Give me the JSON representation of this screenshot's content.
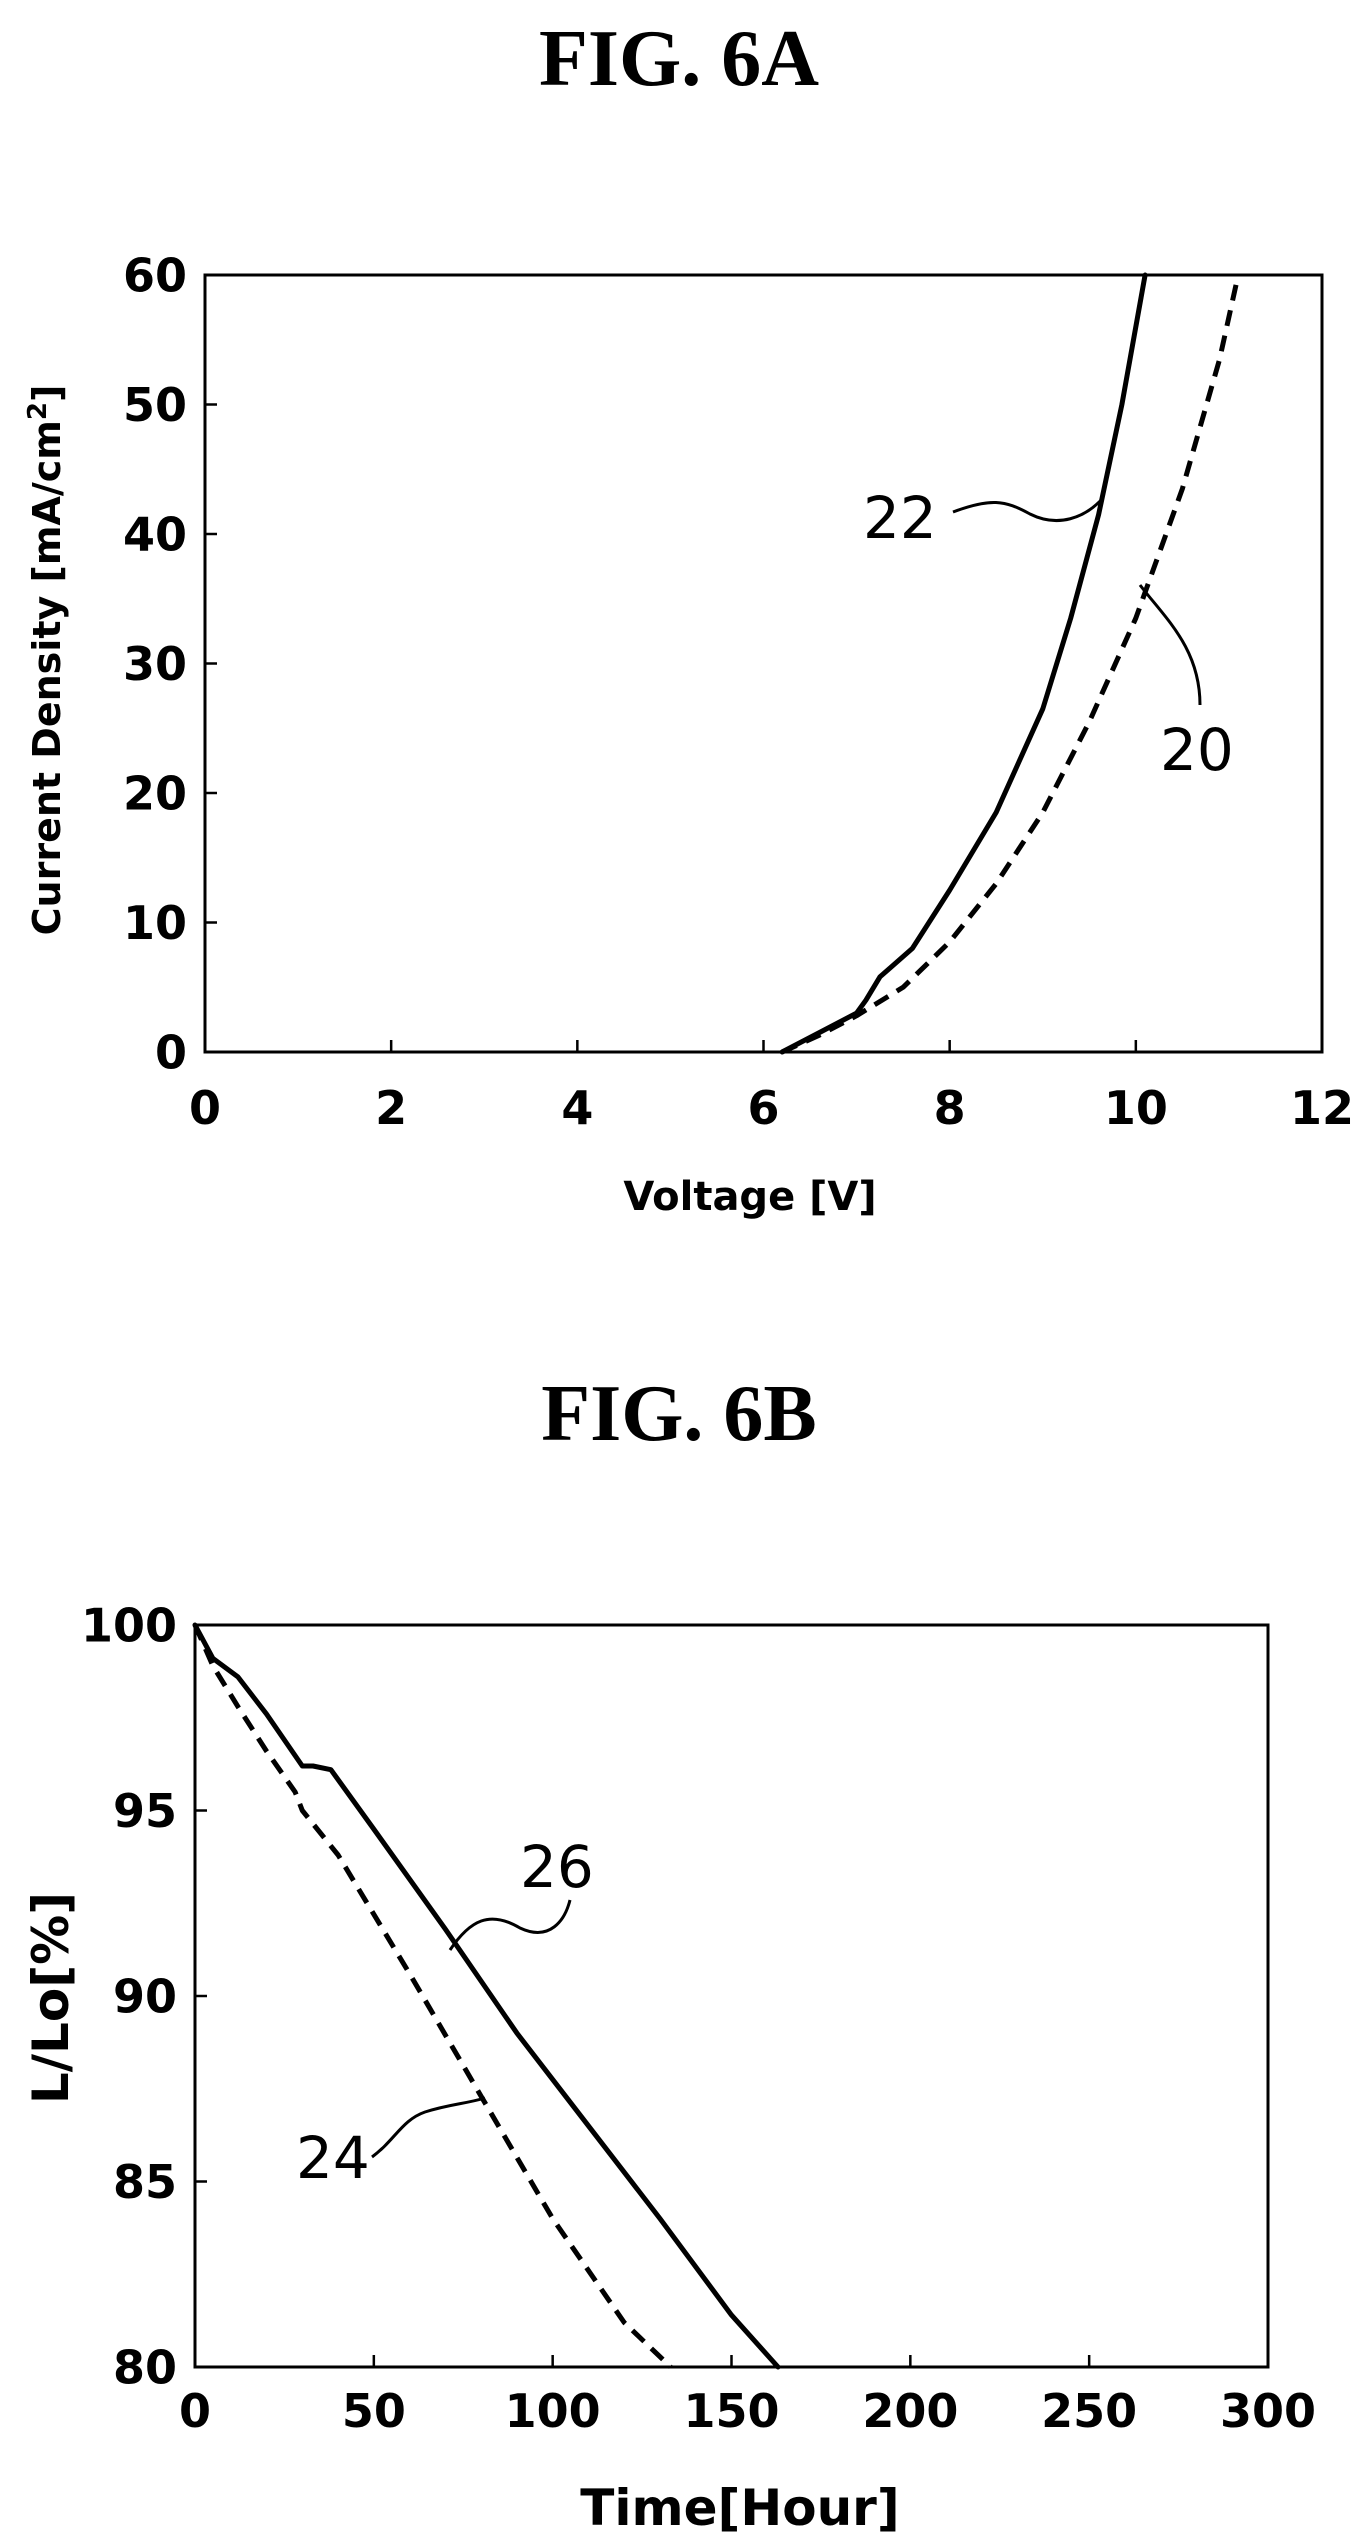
{
  "chart_data": [
    {
      "type": "line",
      "title": "FIG. 6A",
      "xlabel": "Voltage [V]",
      "ylabel": "Current Density [mA/cm",
      "ylabel_superscript": "2",
      "ylabel_suffix": "]",
      "xlim": [
        0,
        12
      ],
      "ylim": [
        0,
        60
      ],
      "xticks": [
        0,
        2,
        4,
        6,
        8,
        10,
        12
      ],
      "yticks": [
        0,
        10,
        20,
        30,
        40,
        50,
        60
      ],
      "grid": false,
      "series": [
        {
          "name": "22",
          "style": "solid",
          "x": [
            6.2,
            6.6,
            7.0,
            7.1,
            7.25,
            7.6,
            8.0,
            8.5,
            9.0,
            9.3,
            9.6,
            9.85,
            10.1
          ],
          "y": [
            0,
            1.5,
            3.0,
            4.0,
            5.8,
            8.0,
            12.5,
            18.5,
            26.5,
            33.5,
            41.5,
            50.0,
            60.0
          ]
        },
        {
          "name": "20",
          "style": "dashed",
          "x": [
            6.2,
            6.6,
            7.0,
            7.5,
            8.0,
            8.5,
            9.0,
            9.5,
            10.0,
            10.5,
            10.9,
            11.1
          ],
          "y": [
            0,
            1.3,
            2.8,
            5.0,
            8.5,
            13.0,
            18.5,
            25.5,
            33.5,
            43.5,
            53.5,
            60.0
          ]
        }
      ]
    },
    {
      "type": "line",
      "title": "FIG. 6B",
      "xlabel": "Time[Hour]",
      "ylabel": "L/Lo[%]",
      "xlim": [
        0,
        300
      ],
      "ylim": [
        80,
        100
      ],
      "xticks": [
        0,
        50,
        100,
        150,
        200,
        250,
        300
      ],
      "yticks": [
        80,
        85,
        90,
        95,
        100
      ],
      "grid": false,
      "series": [
        {
          "name": "26",
          "style": "solid",
          "x": [
            0,
            5,
            12,
            20,
            30,
            33,
            38,
            50,
            70,
            90,
            110,
            130,
            150,
            163
          ],
          "y": [
            100,
            99.1,
            98.6,
            97.6,
            96.2,
            96.2,
            96.1,
            94.5,
            91.8,
            89.0,
            86.5,
            84.0,
            81.4,
            80.0
          ]
        },
        {
          "name": "24",
          "style": "dashed",
          "x": [
            0,
            5,
            12,
            20,
            28,
            30,
            40,
            60,
            80,
            100,
            120,
            133
          ],
          "y": [
            100,
            98.9,
            97.8,
            96.6,
            95.5,
            95.0,
            93.8,
            90.6,
            87.3,
            84.0,
            81.2,
            80.0
          ]
        }
      ]
    }
  ]
}
